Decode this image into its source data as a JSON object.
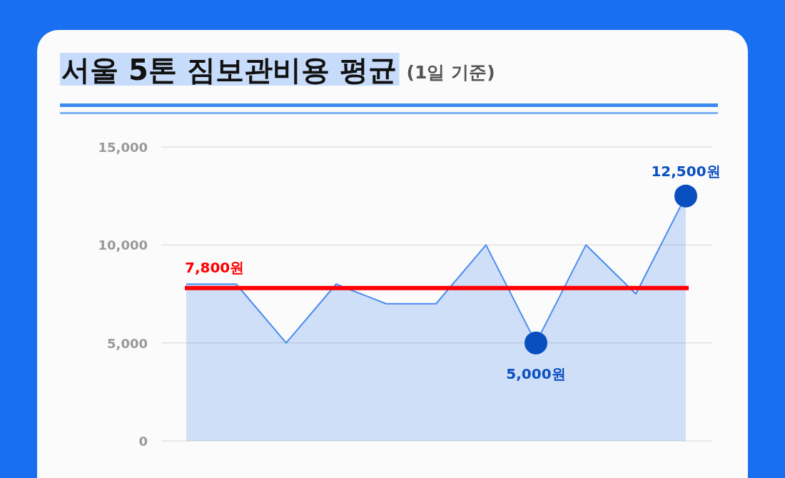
{
  "chart_data": {
    "type": "area",
    "title": "서울 5톤 짐보관비용 평균",
    "subtitle": "(1일 기준)",
    "categories": [
      null,
      null,
      null,
      null,
      null,
      null,
      null,
      null,
      null,
      null,
      null
    ],
    "series": [
      {
        "color": "#4a8cf0",
        "values": [
          8000,
          8000,
          5000,
          8000,
          7000,
          7000,
          10000,
          5000,
          10000,
          7500,
          12500
        ],
        "value_labels": [
          null,
          null,
          null,
          null,
          null,
          null,
          null,
          "5,000원",
          null,
          null,
          "12,500원"
        ]
      }
    ],
    "ylim": [
      0,
      15000
    ],
    "yticks": [
      {
        "value": 0,
        "label": "0"
      },
      {
        "value": 5000,
        "label": "5,000"
      },
      {
        "value": 10000,
        "label": "10,000"
      },
      {
        "value": 15000,
        "label": "15,000"
      }
    ],
    "grid": "y",
    "ref_lines": [
      {
        "axis": "y",
        "value": 7800,
        "label": "7,800원",
        "color": "#ff0000"
      }
    ]
  }
}
